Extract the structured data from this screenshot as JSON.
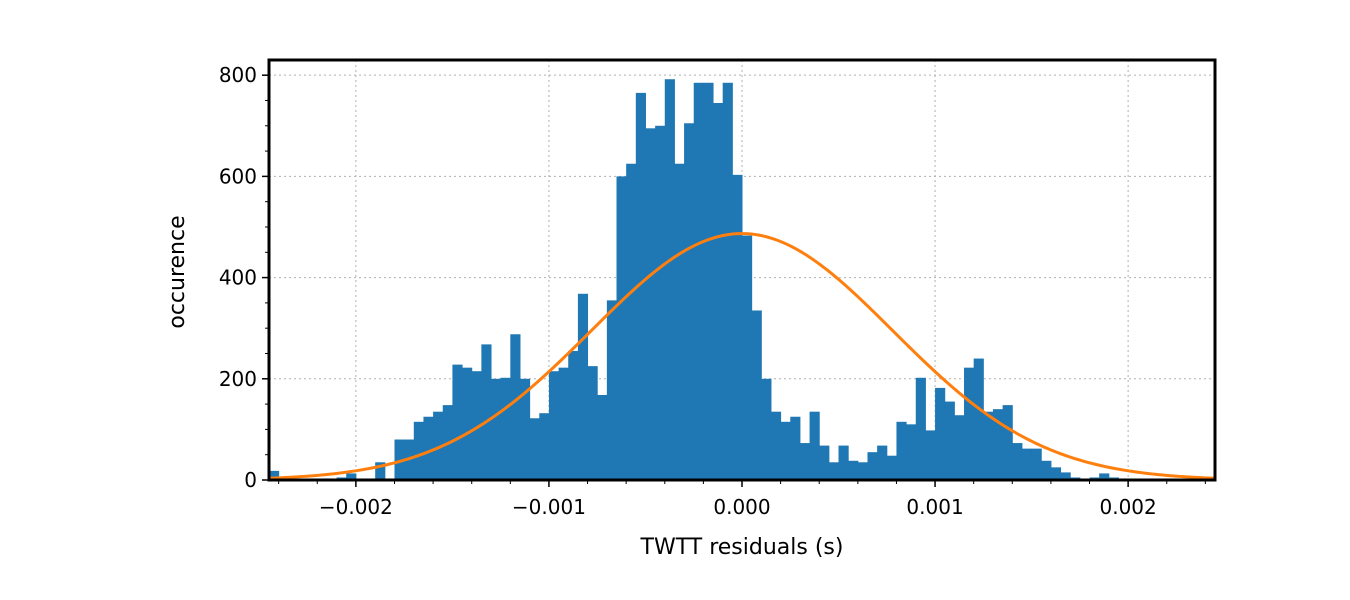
{
  "chart_data": {
    "type": "bar",
    "title": "",
    "xlabel": "TWTT residuals (s)",
    "ylabel": "occurence",
    "xlim": [
      -0.00245,
      0.00245
    ],
    "ylim": [
      0,
      830
    ],
    "grid": true,
    "bar_color": "#1f77b4",
    "curve_color": "#ff7f0e",
    "x_tick_values": [
      -0.002,
      -0.001,
      0.0,
      0.001,
      0.002
    ],
    "x_tick_labels": [
      "−0.002",
      "−0.001",
      "0.000",
      "0.001",
      "0.002"
    ],
    "y_tick_values": [
      0,
      200,
      400,
      600,
      800
    ],
    "y_tick_labels": [
      "0",
      "200",
      "400",
      "600",
      "800"
    ],
    "bin_width": 5e-05,
    "bin_start": -0.00245,
    "values": [
      18,
      0,
      0,
      0,
      2,
      3,
      3,
      5,
      13,
      3,
      3,
      35,
      3,
      80,
      80,
      115,
      125,
      135,
      148,
      228,
      222,
      215,
      268,
      200,
      202,
      288,
      200,
      122,
      132,
      215,
      222,
      255,
      368,
      225,
      168,
      355,
      600,
      625,
      765,
      695,
      700,
      792,
      625,
      705,
      785,
      785,
      745,
      785,
      603,
      483,
      335,
      200,
      135,
      115,
      125,
      73,
      135,
      68,
      35,
      68,
      38,
      35,
      55,
      68,
      48,
      115,
      110,
      202,
      98,
      182,
      155,
      128,
      222,
      240,
      135,
      140,
      148,
      73,
      62,
      62,
      38,
      25,
      15,
      5,
      2,
      5,
      13,
      5,
      3,
      0,
      0
    ],
    "fit": {
      "name": "gaussian fit",
      "mean": 0.0,
      "std": 0.00078,
      "peak": 487
    }
  }
}
